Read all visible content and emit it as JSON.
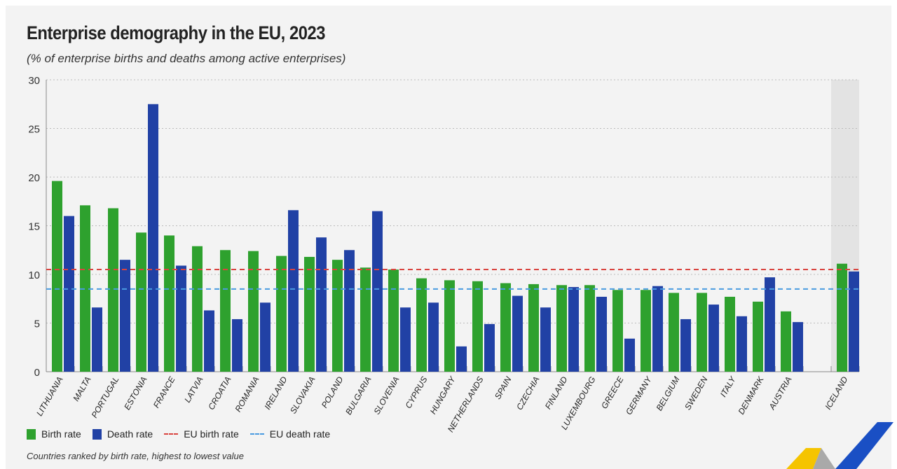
{
  "chart_data": {
    "type": "bar",
    "title": "Enterprise demography in the EU, 2023",
    "subtitle": "(% of enterprise births and deaths among active enterprises)",
    "categories": [
      "LITHUANIA",
      "MALTA",
      "PORTUGAL",
      "ESTONIA",
      "FRANCE",
      "LATVIA",
      "CROATIA",
      "ROMANIA",
      "IRELAND",
      "SLOVAKIA",
      "POLAND",
      "BULGARIA",
      "SLOVENIA",
      "CYPRUS",
      "HUNGARY",
      "NETHERLANDS",
      "SPAIN",
      "CZECHIA",
      "FINLAND",
      "LUXEMBOURG",
      "GREECE",
      "GERMANY",
      "BELGIUM",
      "SWEDEN",
      "ITALY",
      "DENMARK",
      "AUSTRIA",
      "ICELAND"
    ],
    "series": [
      {
        "name": "Birth rate",
        "color": "#2ea12e",
        "values": [
          19.6,
          17.1,
          16.8,
          14.3,
          14.0,
          12.9,
          12.5,
          12.4,
          11.9,
          11.8,
          11.5,
          10.7,
          10.5,
          9.6,
          9.4,
          9.3,
          9.1,
          9.0,
          8.9,
          8.9,
          8.4,
          8.4,
          8.1,
          8.1,
          7.7,
          7.2,
          6.2,
          11.1
        ]
      },
      {
        "name": "Death rate",
        "color": "#2141a5",
        "values": [
          16.0,
          6.6,
          11.5,
          27.5,
          10.9,
          6.3,
          5.4,
          7.1,
          16.6,
          13.8,
          12.5,
          16.5,
          6.6,
          7.1,
          2.6,
          4.9,
          7.8,
          6.6,
          8.7,
          7.7,
          3.4,
          8.8,
          5.4,
          6.9,
          5.7,
          9.7,
          5.1,
          10.3
        ]
      }
    ],
    "reference_lines": [
      {
        "name": "EU birth rate",
        "value": 10.5,
        "color": "#d9443f",
        "style": "dashed"
      },
      {
        "name": "EU death rate",
        "value": 8.5,
        "color": "#4a9be0",
        "style": "dashed"
      }
    ],
    "highlighted_category": "ICELAND",
    "ylim": [
      0,
      30
    ],
    "yticks": [
      0,
      5,
      10,
      15,
      20,
      25,
      30
    ],
    "grid": true,
    "legend": "bottom-left",
    "note": "Countries ranked by birth rate, highest to lowest value"
  }
}
